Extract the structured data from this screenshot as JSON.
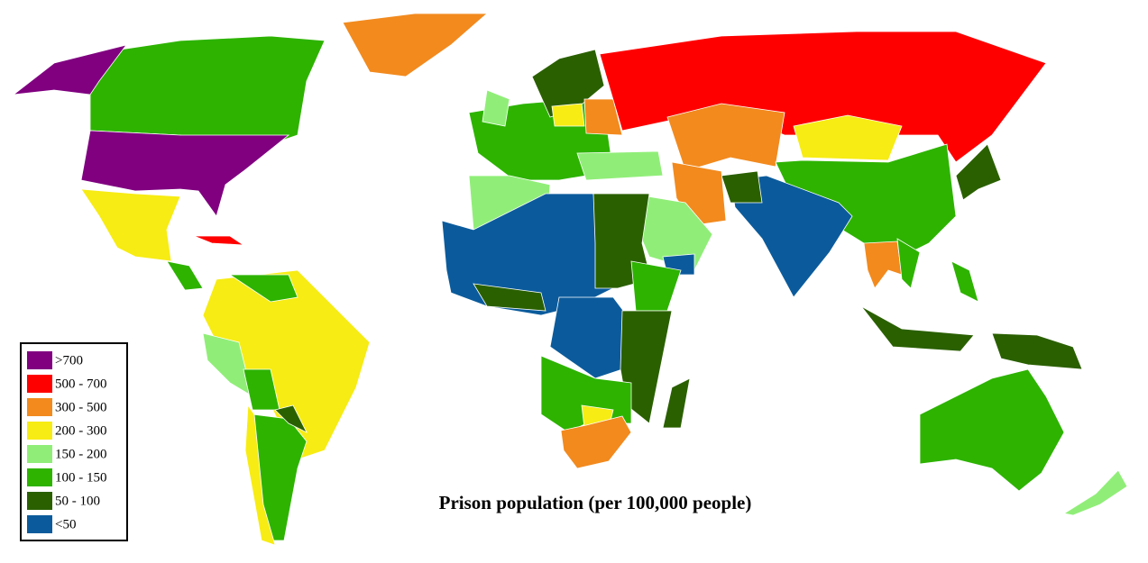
{
  "title": "Prison population (per 100,000 people)",
  "legend": [
    {
      "label": ">700",
      "color": "#800080"
    },
    {
      "label": "500 - 700",
      "color": "#ff0000"
    },
    {
      "label": "300 - 500",
      "color": "#f28a1e"
    },
    {
      "label": "200 - 300",
      "color": "#f7ec13"
    },
    {
      "label": "150 - 200",
      "color": "#90ee78"
    },
    {
      "label": "100 - 150",
      "color": "#2db300"
    },
    {
      "label": "50 - 100",
      "color": "#2a6000"
    },
    {
      "label": "<50",
      "color": "#0b5b9c"
    }
  ]
}
